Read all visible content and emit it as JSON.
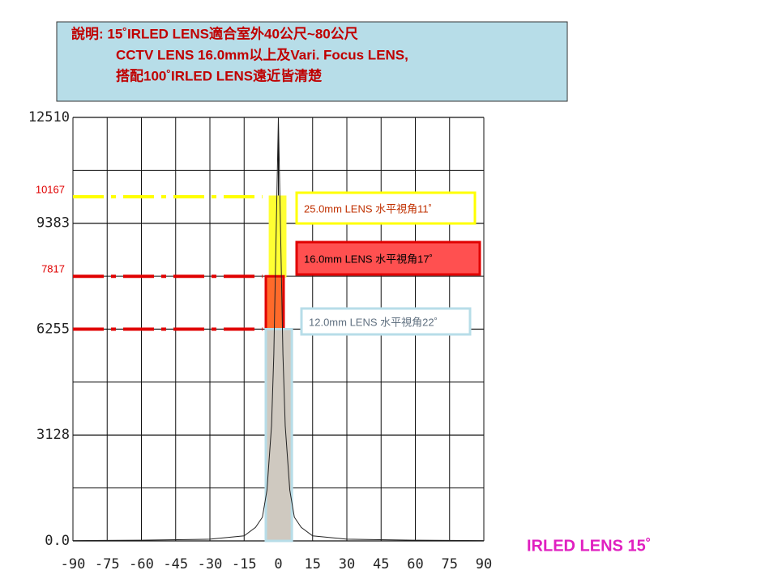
{
  "chart_data": {
    "type": "line",
    "note_lines": [
      "說明: 15˚IRLED LENS適合室外40公尺~80公尺",
      "CCTV LENS 16.0mm以上及Vari. Focus LENS,",
      "搭配100˚IRLED LENS遠近皆清楚"
    ],
    "title": "IRLED LENS 15˚",
    "x": [
      -90,
      -60,
      -30,
      -15,
      -10,
      -7,
      -5,
      -3,
      -2,
      -1,
      0,
      1,
      2,
      3,
      5,
      7,
      10,
      15,
      30,
      60,
      90
    ],
    "series": [
      {
        "color": "#222222",
        "values": [
          10,
          20,
          50,
          150,
          400,
          700,
          1500,
          3400,
          5500,
          9000,
          12510,
          9000,
          5500,
          3400,
          1500,
          700,
          400,
          150,
          50,
          20,
          10
        ]
      }
    ],
    "xlim": [
      -90,
      90
    ],
    "xticks": [
      -90,
      -75,
      -60,
      -45,
      -30,
      -15,
      0,
      15,
      30,
      45,
      60,
      75,
      90
    ],
    "ylim": [
      0,
      12510
    ],
    "yticks": [
      {
        "value": 0,
        "label": "0.0"
      },
      3128,
      6255,
      9383,
      12510
    ],
    "y_minor_ticks": [
      1563.75,
      4691.25,
      7818.75,
      10946.25
    ],
    "grid": true,
    "levels": [
      {
        "value": 10167,
        "color": "#ffff00",
        "show_label": true
      },
      {
        "value": 7817,
        "color": "#e00000",
        "show_label": true
      },
      {
        "value": 6255,
        "color": "#e00000",
        "show_label": false
      }
    ],
    "bands": [
      {
        "low": 7817,
        "high": 10167,
        "x0": -3.7,
        "x1": 3,
        "fill": "#ffff33",
        "stroke": "#ffff33"
      },
      {
        "low": 6255,
        "high": 7817,
        "x0": -5.5,
        "x1": 2.3,
        "fill": "#ff6a2a",
        "stroke": "#e00000"
      },
      {
        "low": 0,
        "high": 6255,
        "x0": -5.5,
        "x1": 5.9,
        "fill": "#cfc9c0",
        "stroke": "#b7dde8"
      }
    ],
    "legend": [
      {
        "text": "25.0mm LENS 水平視角11˚",
        "border": "#ffff00",
        "fill": "#ffffff",
        "text_color": "#c03000"
      },
      {
        "text": "16.0mm LENS 水平視角17˚",
        "border": "#e00000",
        "fill": "#ff5050",
        "text_color": "#000000"
      },
      {
        "text": "12.0mm LENS 水平視角22˚",
        "border": "#b7dde8",
        "fill": "#ffffff",
        "text_color": "#607080"
      }
    ]
  }
}
